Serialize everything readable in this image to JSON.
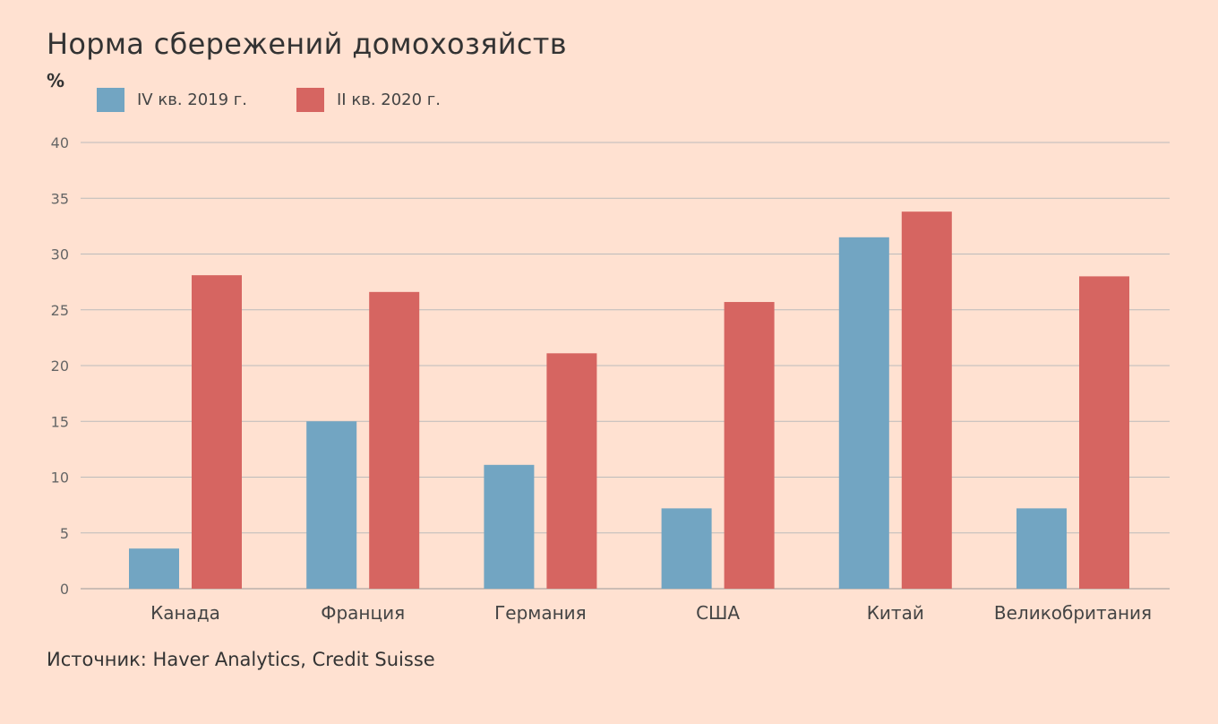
{
  "chart_data": {
    "type": "bar",
    "title": "Норма сбережений домохозяйств",
    "ylabel": "%",
    "categories": [
      "Канада",
      "Франция",
      "Германия",
      "США",
      "Китай",
      "Великобритания"
    ],
    "series": [
      {
        "name": "IV кв. 2019 г.",
        "color": "#72a5c2",
        "values": [
          3.6,
          15.0,
          11.1,
          7.2,
          31.5,
          7.2
        ]
      },
      {
        "name": "II кв. 2020 г.",
        "color": "#d66561",
        "values": [
          28.1,
          26.6,
          21.1,
          25.7,
          33.8,
          28.0
        ]
      }
    ],
    "ylim": [
      0,
      40
    ],
    "yticks": [
      "0",
      "5",
      "10",
      "15",
      "20",
      "25",
      "30",
      "35",
      "40"
    ],
    "grid": true,
    "legend": "top-left",
    "source": "Источник: Haver Analytics, Credit Suisse"
  }
}
